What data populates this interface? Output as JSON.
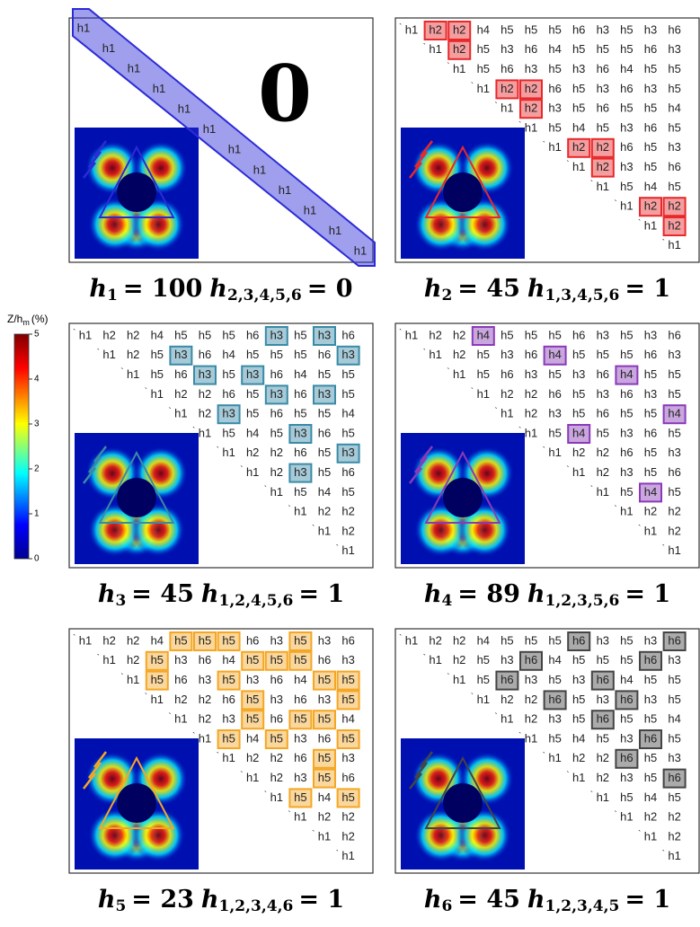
{
  "symbol": "h",
  "matrix": {
    "rows": [
      [
        "h1",
        "h2",
        "h2",
        "h4",
        "h5",
        "h5",
        "h5",
        "h6",
        "h3",
        "h5",
        "h3",
        "h6"
      ],
      [
        "h1",
        "h2",
        "h5",
        "h3",
        "h6",
        "h4",
        "h5",
        "h5",
        "h5",
        "h6",
        "h3"
      ],
      [
        "h1",
        "h5",
        "h6",
        "h3",
        "h5",
        "h3",
        "h6",
        "h4",
        "h5",
        "h5"
      ],
      [
        "h1",
        "h2",
        "h2",
        "h6",
        "h5",
        "h3",
        "h6",
        "h3",
        "h5"
      ],
      [
        "h1",
        "h2",
        "h3",
        "h5",
        "h6",
        "h5",
        "h5",
        "h4"
      ],
      [
        "h1",
        "h5",
        "h4",
        "h5",
        "h3",
        "h6",
        "h5"
      ],
      [
        "h1",
        "h2",
        "h2",
        "h6",
        "h5",
        "h3"
      ],
      [
        "h1",
        "h2",
        "h3",
        "h5",
        "h6"
      ],
      [
        "h1",
        "h5",
        "h4",
        "h5"
      ],
      [
        "h1",
        "h2",
        "h2"
      ],
      [
        "h1",
        "h2"
      ],
      [
        "h1"
      ]
    ]
  },
  "colorbar": {
    "label": "Z/h",
    "label_sub": "m",
    "label_unit": "(%)",
    "ticks": [
      0,
      1,
      2,
      3,
      4,
      5
    ]
  },
  "panels": [
    {
      "highlight": "h1",
      "show": "diagonal",
      "color": "#2b2bd6",
      "big_label": "0",
      "caption": {
        "sub": "1",
        "value": "= 100",
        "rest_sub": "2,3,4,5,6",
        "rest_value": "= 0"
      }
    },
    {
      "highlight": "h2",
      "show": "all",
      "color": "#e8282a",
      "caption": {
        "sub": "2",
        "value": "= 45",
        "rest_sub": "1,3,4,5,6",
        "rest_value": "= 1"
      }
    },
    {
      "highlight": "h3",
      "show": "all",
      "color": "#3a8aa6",
      "caption": {
        "sub": "3",
        "value": "= 45",
        "rest_sub": "1,2,4,5,6",
        "rest_value": "= 1"
      }
    },
    {
      "highlight": "h4",
      "show": "all",
      "color": "#8a3ab8",
      "caption": {
        "sub": "4",
        "value": "= 89",
        "rest_sub": "1,2,3,5,6",
        "rest_value": "= 1"
      }
    },
    {
      "highlight": "h5",
      "show": "all",
      "color": "#f5a623",
      "caption": {
        "sub": "5",
        "value": "= 23",
        "rest_sub": "1,2,3,4,6",
        "rest_value": "= 1"
      }
    },
    {
      "highlight": "h6",
      "show": "all",
      "color": "#444444",
      "caption": {
        "sub": "6",
        "value": "= 45",
        "rest_sub": "1,2,3,4,5",
        "rest_value": "= 1"
      }
    }
  ]
}
